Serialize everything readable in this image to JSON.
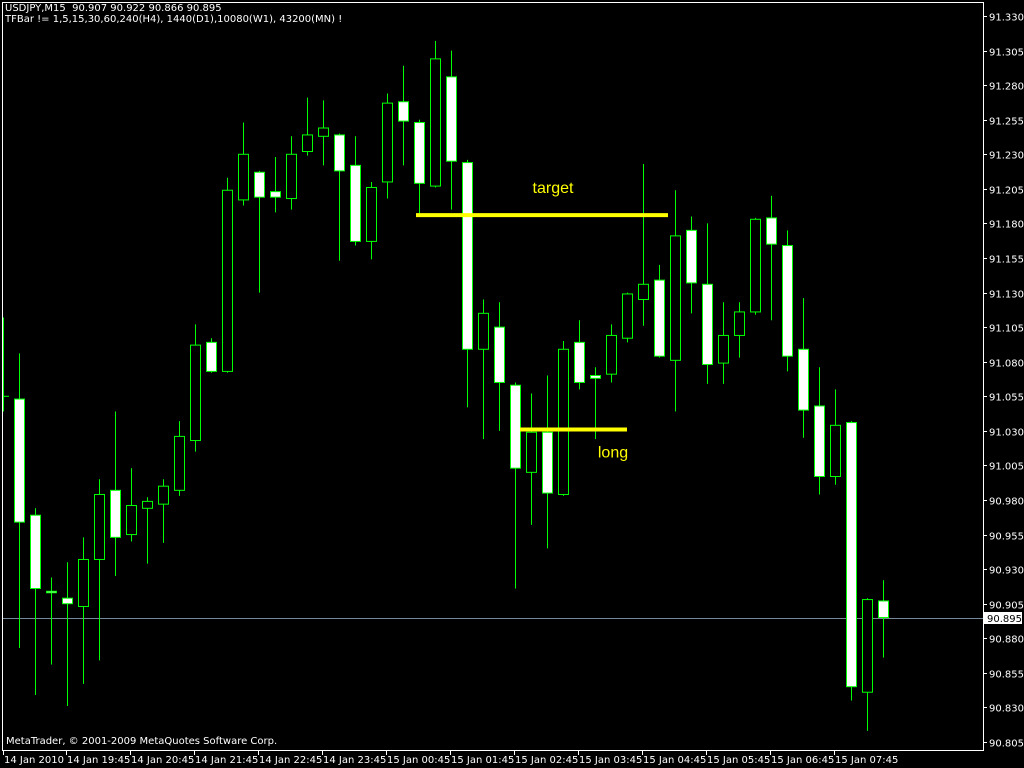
{
  "header": {
    "symbol_line": "USDJPY,M15  90.907 90.922 90.866 90.895",
    "indicator_line": "TFBar != 1,5,15,30,60,240(H4), 1440(D1),10080(W1), 43200(MN) !"
  },
  "footer": {
    "copyright": "MetaTrader, © 2001-2009 MetaQuotes Software Corp."
  },
  "colors": {
    "background": "#000000",
    "frame": "#ffffff",
    "candle_outline": "#00ff00",
    "bear_body": "#ffffff",
    "bull_body": "#000000",
    "current_price_line": "#778899",
    "annotation": "#ffff00"
  },
  "chart_data": {
    "type": "candlestick",
    "symbol": "USDJPY",
    "timeframe": "M15",
    "ylim": [
      90.805,
      91.33
    ],
    "grid": false,
    "y_ticks": [
      "91.330",
      "91.305",
      "91.280",
      "91.255",
      "91.230",
      "91.205",
      "91.180",
      "91.155",
      "91.130",
      "91.105",
      "91.080",
      "91.055",
      "91.030",
      "91.005",
      "90.980",
      "90.955",
      "90.930",
      "90.905",
      "90.880",
      "90.855",
      "90.830",
      "90.805"
    ],
    "current_price": "90.895",
    "x_tick_labels": [
      "14 Jan 2010",
      "14 Jan 19:45",
      "14 Jan 20:45",
      "14 Jan 21:45",
      "14 Jan 22:45",
      "14 Jan 23:45",
      "15 Jan 00:45",
      "15 Jan 01:45",
      "15 Jan 02:45",
      "15 Jan 03:45",
      "15 Jan 04:45",
      "15 Jan 05:45",
      "15 Jan 06:45",
      "15 Jan 07:45"
    ],
    "candles_ohlc": [
      [
        91.055,
        91.112,
        91.044,
        91.055
      ],
      [
        91.053,
        91.086,
        90.873,
        90.964
      ],
      [
        90.969,
        90.974,
        90.839,
        90.916
      ],
      [
        90.914,
        90.924,
        90.861,
        90.913
      ],
      [
        90.909,
        90.935,
        90.831,
        90.905
      ],
      [
        90.903,
        90.953,
        90.847,
        90.937
      ],
      [
        90.937,
        90.995,
        90.864,
        90.984
      ],
      [
        90.987,
        91.044,
        90.925,
        90.953
      ],
      [
        90.955,
        91.003,
        90.95,
        90.976
      ],
      [
        90.974,
        90.982,
        90.934,
        90.979
      ],
      [
        90.977,
        90.995,
        90.949,
        90.99
      ],
      [
        90.987,
        91.037,
        90.983,
        91.026
      ],
      [
        91.023,
        91.107,
        91.015,
        91.092
      ],
      [
        91.094,
        91.097,
        91.072,
        91.073
      ],
      [
        91.073,
        91.213,
        91.072,
        91.204
      ],
      [
        91.197,
        91.253,
        91.193,
        91.23
      ],
      [
        91.217,
        91.218,
        91.13,
        91.199
      ],
      [
        91.203,
        91.228,
        91.188,
        91.199
      ],
      [
        91.198,
        91.243,
        91.19,
        91.23
      ],
      [
        91.232,
        91.271,
        91.229,
        91.244
      ],
      [
        91.243,
        91.269,
        91.222,
        91.249
      ],
      [
        91.244,
        91.245,
        91.153,
        91.218
      ],
      [
        91.222,
        91.243,
        91.164,
        91.167
      ],
      [
        91.167,
        91.21,
        91.154,
        91.206
      ],
      [
        91.21,
        91.274,
        91.198,
        91.267
      ],
      [
        91.268,
        91.294,
        91.222,
        91.254
      ],
      [
        91.253,
        91.255,
        91.186,
        91.209
      ],
      [
        91.207,
        91.312,
        91.206,
        91.299
      ],
      [
        91.286,
        91.305,
        91.19,
        91.225
      ],
      [
        91.224,
        91.226,
        91.047,
        91.089
      ],
      [
        91.089,
        91.125,
        91.024,
        91.115
      ],
      [
        91.105,
        91.123,
        91.03,
        91.065
      ],
      [
        91.063,
        91.065,
        90.916,
        91.003
      ],
      [
        91.0,
        91.057,
        90.962,
        91.029
      ],
      [
        91.029,
        91.07,
        90.945,
        90.985
      ],
      [
        90.984,
        91.095,
        90.983,
        91.089
      ],
      [
        91.094,
        91.11,
        91.06,
        91.065
      ],
      [
        91.07,
        91.076,
        91.024,
        91.068
      ],
      [
        91.071,
        91.107,
        91.065,
        91.099
      ],
      [
        91.097,
        91.13,
        91.094,
        91.129
      ],
      [
        91.125,
        91.223,
        91.106,
        91.136
      ],
      [
        91.139,
        91.15,
        91.083,
        91.084
      ],
      [
        91.081,
        91.204,
        91.044,
        91.171
      ],
      [
        91.175,
        91.185,
        91.115,
        91.137
      ],
      [
        91.136,
        91.18,
        91.064,
        91.078
      ],
      [
        91.079,
        91.123,
        91.064,
        91.099
      ],
      [
        91.099,
        91.123,
        91.083,
        91.116
      ],
      [
        91.116,
        91.184,
        91.114,
        91.183
      ],
      [
        91.184,
        91.2,
        91.11,
        91.165
      ],
      [
        91.164,
        91.175,
        91.073,
        91.084
      ],
      [
        91.089,
        91.126,
        91.025,
        91.045
      ],
      [
        91.048,
        91.076,
        90.984,
        90.997
      ],
      [
        90.997,
        91.06,
        90.991,
        91.034
      ],
      [
        91.036,
        91.037,
        90.835,
        90.845
      ],
      [
        90.841,
        90.909,
        90.813,
        90.908
      ],
      [
        90.907,
        90.922,
        90.866,
        90.895
      ]
    ],
    "annotations": [
      {
        "label": "target",
        "price": 91.186
      },
      {
        "label": "long",
        "price": 91.031
      }
    ]
  }
}
